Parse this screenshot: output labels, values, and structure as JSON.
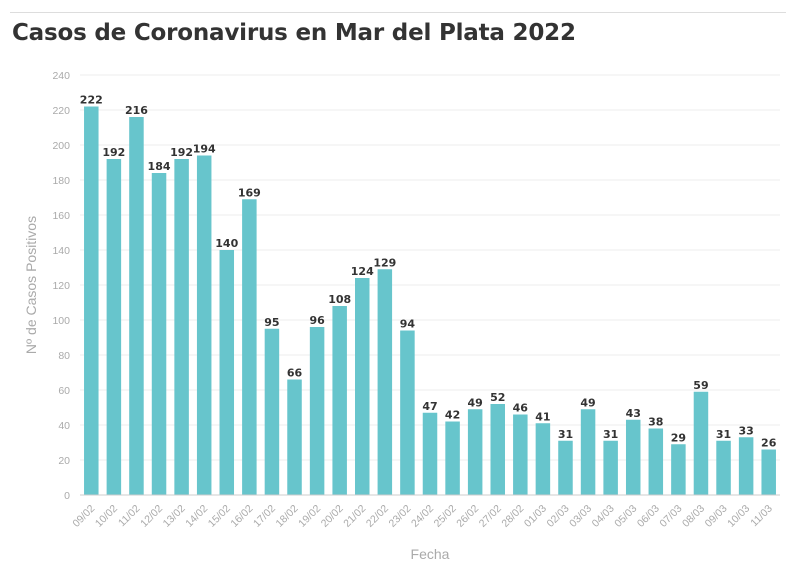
{
  "chart_data": {
    "type": "bar",
    "title": "Casos de Coronavirus en Mar del Plata 2022",
    "xlabel": "Fecha",
    "ylabel": "Nº de Casos Positivos",
    "ylim": [
      0,
      240
    ],
    "yticks": [
      0,
      20,
      40,
      60,
      80,
      100,
      120,
      140,
      160,
      180,
      200,
      220,
      240
    ],
    "grid": true,
    "bar_color": "#67c5cc",
    "categories": [
      "09/02",
      "10/02",
      "11/02",
      "12/02",
      "13/02",
      "14/02",
      "15/02",
      "16/02",
      "17/02",
      "18/02",
      "19/02",
      "20/02",
      "21/02",
      "22/02",
      "23/02",
      "24/02",
      "25/02",
      "26/02",
      "27/02",
      "28/02",
      "01/03",
      "02/03",
      "03/03",
      "04/03",
      "05/03",
      "06/03",
      "07/03",
      "08/03",
      "09/03",
      "10/03",
      "11/03"
    ],
    "values": [
      222,
      192,
      216,
      184,
      192,
      194,
      140,
      169,
      95,
      66,
      96,
      108,
      124,
      129,
      94,
      47,
      42,
      49,
      52,
      46,
      41,
      31,
      49,
      31,
      43,
      38,
      29,
      59,
      31,
      33,
      26
    ]
  }
}
